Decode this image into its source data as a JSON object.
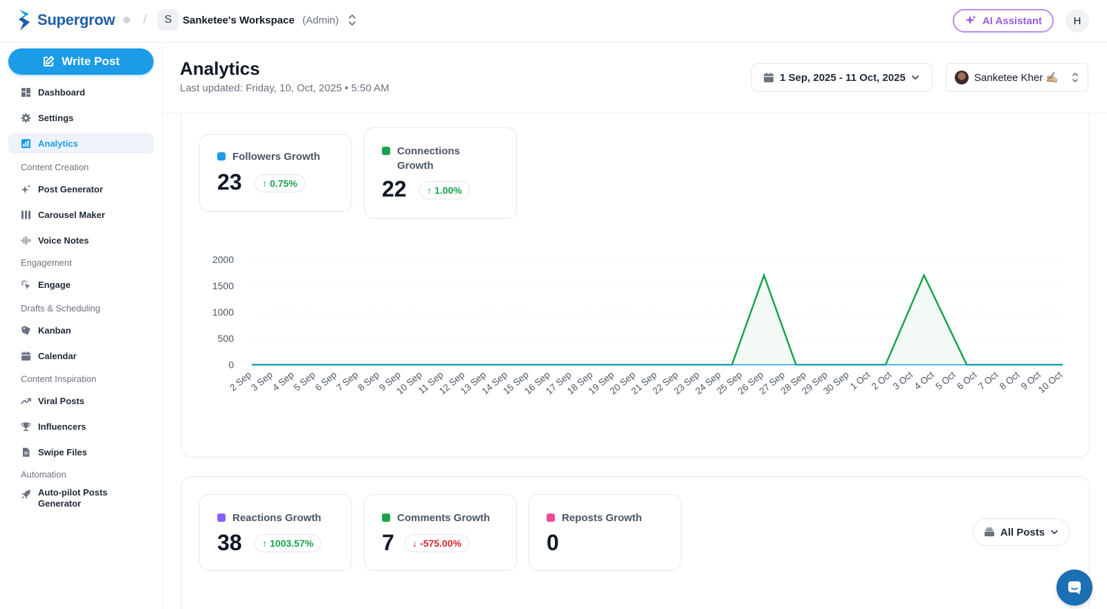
{
  "brand": {
    "name": "Supergrow"
  },
  "workspace": {
    "initial": "S",
    "name": "Sanketee's Workspace",
    "role": "(Admin)"
  },
  "topbar": {
    "ai_label": "AI Assistant",
    "user_initial": "H"
  },
  "sidebar": {
    "write_post": "Write Post",
    "items": [
      {
        "label": "Dashboard",
        "icon": "dashboard-icon"
      },
      {
        "label": "Settings",
        "icon": "gear-icon"
      },
      {
        "label": "Analytics",
        "icon": "bar-chart-icon",
        "active": true
      }
    ],
    "sections": [
      {
        "title": "Content Creation",
        "items": [
          "Post Generator",
          "Carousel Maker",
          "Voice Notes"
        ]
      },
      {
        "title": "Engagement",
        "items": [
          "Engage"
        ]
      },
      {
        "title": "Drafts & Scheduling",
        "items": [
          "Kanban",
          "Calendar"
        ]
      },
      {
        "title": "Content Inspiration",
        "items": [
          "Viral Posts",
          "Influencers",
          "Swipe Files"
        ]
      },
      {
        "title": "Automation",
        "items": [
          "Auto-pilot Posts Generator"
        ]
      }
    ]
  },
  "header": {
    "title": "Analytics",
    "updated": "Last updated: Friday, 10, Oct, 2025 • 5:50 AM",
    "date_range": "1 Sep, 2025 - 11 Oct, 2025",
    "profile_name": "Sanketee Kher ✍🏼"
  },
  "growth": {
    "followers": {
      "label": "Followers Growth",
      "value": "23",
      "change": "0.75%",
      "color": "#1c9be6"
    },
    "connections": {
      "label": "Connections Growth",
      "value": "22",
      "change": "1.00%",
      "color": "#16a34a"
    }
  },
  "engagement": {
    "reactions": {
      "label": "Reactions Growth",
      "value": "38",
      "change": "1003.57%",
      "color": "#8b5cf6"
    },
    "comments": {
      "label": "Comments Growth",
      "value": "7",
      "change": "-575.00%",
      "color": "#16a34a"
    },
    "reposts": {
      "label": "Reposts Growth",
      "value": "0",
      "color": "#ec4899"
    },
    "filter": "All Posts"
  },
  "chart_data": {
    "type": "line",
    "title": "",
    "xlabel": "",
    "ylabel": "",
    "ylim": [
      0,
      2000
    ],
    "yticks": [
      0,
      500,
      1000,
      1500,
      2000
    ],
    "categories": [
      "2 Sep",
      "3 Sep",
      "4 Sep",
      "5 Sep",
      "6 Sep",
      "7 Sep",
      "8 Sep",
      "9 Sep",
      "10 Sep",
      "11 Sep",
      "12 Sep",
      "13 Sep",
      "14 Sep",
      "15 Sep",
      "16 Sep",
      "17 Sep",
      "18 Sep",
      "19 Sep",
      "20 Sep",
      "21 Sep",
      "22 Sep",
      "23 Sep",
      "24 Sep",
      "25 Sep",
      "26 Sep",
      "27 Sep",
      "28 Sep",
      "29 Sep",
      "30 Sep",
      "1 Oct",
      "2 Oct",
      "3 Oct",
      "4 Oct",
      "5 Oct",
      "6 Oct",
      "7 Oct",
      "8 Oct",
      "9 Oct",
      "10 Oct"
    ],
    "series": [
      {
        "name": "Connections",
        "color": "#16a34a",
        "points": [
          [
            0,
            0
          ],
          [
            22.5,
            0
          ],
          [
            24,
            1700
          ],
          [
            25.5,
            0
          ],
          [
            29.7,
            0
          ],
          [
            31.5,
            1700
          ],
          [
            33.5,
            0
          ],
          [
            38,
            0
          ]
        ]
      },
      {
        "name": "Followers",
        "color": "#1c9be6",
        "points": [
          [
            0,
            0
          ],
          [
            38,
            0
          ]
        ]
      }
    ]
  }
}
